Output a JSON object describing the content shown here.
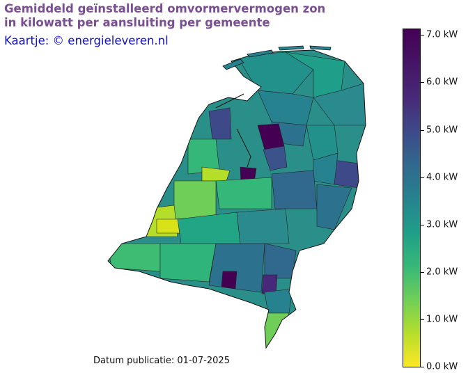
{
  "title": {
    "line1": "Gemiddeld geïnstalleerd omvormervermogen zon",
    "line2": "in kilowatt per aansluiting per gemeente"
  },
  "credit": "Kaartje: © energieleveren.nl",
  "publication": "Datum publicatie: 01-07-2025",
  "colorbar": {
    "colormap": "viridis (reversed)",
    "min": 0.0,
    "max": 7.2,
    "ticks": [
      "0.0 kW",
      "1.0 kW",
      "2.0 kW",
      "3.0 kW",
      "4.0 kW",
      "5.0 kW",
      "6.0 kW",
      "7.0 kW"
    ]
  },
  "map": {
    "region": "Netherlands, municipalities",
    "colors": {
      "low": "#fde725",
      "mid_low": "#6ece58",
      "mid": "#1f9e89",
      "mid_high": "#31688e",
      "high": "#440154"
    }
  }
}
